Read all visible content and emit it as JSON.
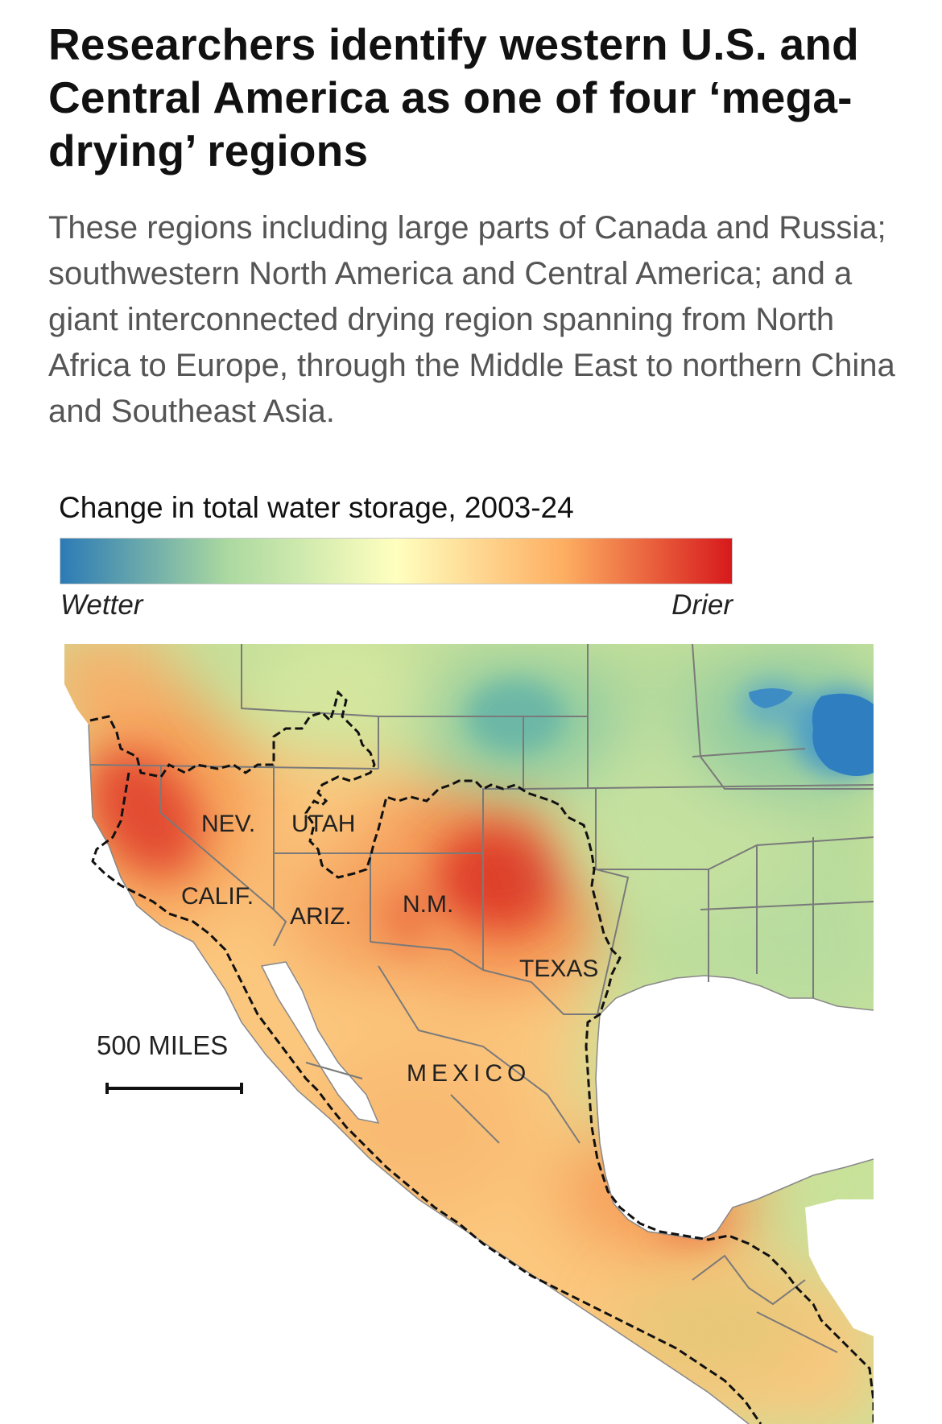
{
  "headline": "Researchers identify western U.S. and Central America as one of four ‘mega-drying’ regions",
  "dek": "These regions including large parts of Canada and Russia; southwestern North America and Central America; and a giant interconnected drying region spanning from North Africa to Europe, through the Middle East to northern China and Southeast Asia.",
  "legend": {
    "title": "Change in total water storage, 2003-24",
    "low_label": "Wetter",
    "high_label": "Drier",
    "colors": [
      "#2c7bb6",
      "#abd9a0",
      "#ffffbf",
      "#fdae61",
      "#d7191c"
    ]
  },
  "map": {
    "labels": {
      "nev": "NEV.",
      "utah": "UTAH",
      "calif": "CALIF.",
      "ariz": "ARIZ.",
      "nm": "N.M.",
      "texas": "TEXAS",
      "mexico": "MEXICO"
    },
    "scale_label": "500 MILES",
    "colors": {
      "ocean": "#ffffff",
      "boundary": "#777777",
      "dashed_outline": "#111111"
    }
  }
}
